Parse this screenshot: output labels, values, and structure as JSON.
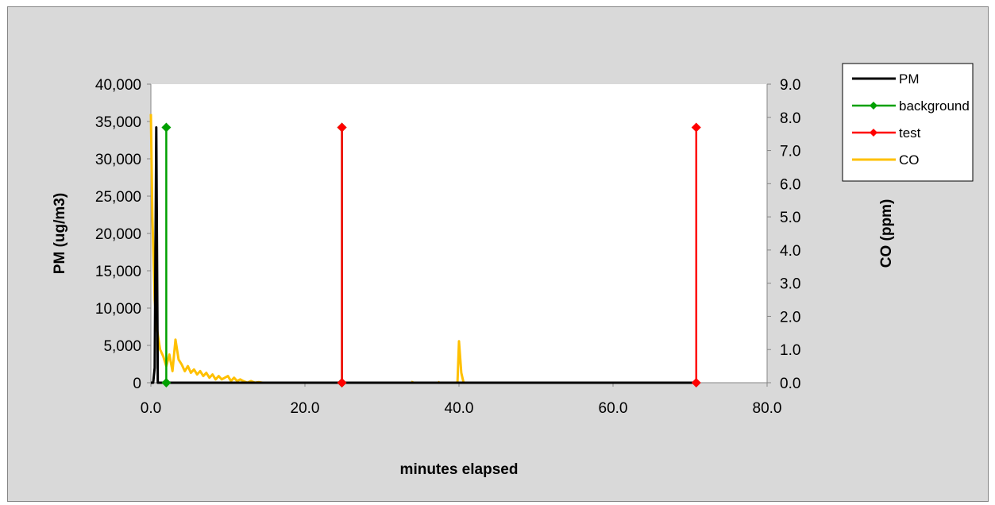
{
  "chart_data": {
    "type": "line",
    "xlabel": "minutes elapsed",
    "ylabel": "PM (ug/m3)",
    "y2label": "CO (ppm)",
    "xlim": [
      0,
      80
    ],
    "ylim": [
      0,
      40000
    ],
    "y2lim": [
      0,
      9
    ],
    "x_ticks": [
      0,
      20,
      40,
      60,
      80
    ],
    "x_tick_labels": [
      "0.0",
      "20.0",
      "40.0",
      "60.0",
      "80.0"
    ],
    "y_ticks": [
      0,
      5000,
      10000,
      15000,
      20000,
      25000,
      30000,
      35000,
      40000
    ],
    "y_tick_labels": [
      "0",
      "5,000",
      "10,000",
      "15,000",
      "20,000",
      "25,000",
      "30,000",
      "35,000",
      "40,000"
    ],
    "y2_ticks": [
      0,
      1,
      2,
      3,
      4,
      5,
      6,
      7,
      8,
      9
    ],
    "y2_tick_labels": [
      "0.0",
      "1.0",
      "2.0",
      "3.0",
      "4.0",
      "5.0",
      "6.0",
      "7.0",
      "8.0",
      "9.0"
    ],
    "grid": false,
    "legend_position": "right",
    "series": [
      {
        "name": "PM",
        "axis": "left",
        "color": "#000000",
        "marker": "none",
        "x": [
          0,
          0.3,
          0.5,
          0.7,
          0.9,
          1.1,
          1.5,
          2,
          5,
          10,
          20,
          30,
          40,
          50,
          60,
          70,
          71
        ],
        "y": [
          0,
          0,
          2000,
          34200,
          0,
          0,
          0,
          0,
          0,
          0,
          0,
          0,
          0,
          0,
          0,
          0,
          0
        ]
      },
      {
        "name": "background",
        "axis": "left",
        "color": "#00a000",
        "marker": "diamond",
        "x": [
          2,
          2,
          null,
          24.8,
          24.8
        ],
        "y": [
          0,
          34200,
          null,
          34200,
          0
        ]
      },
      {
        "name": "test",
        "axis": "left",
        "color": "#ff0000",
        "marker": "diamond",
        "x": [
          24.8,
          24.8,
          null,
          70.8,
          70.8
        ],
        "y": [
          34200,
          0,
          null,
          0,
          34200
        ]
      },
      {
        "name": "CO",
        "axis": "right",
        "color": "#ffc000",
        "marker": "none",
        "x": [
          0,
          0.2,
          0.5,
          0.8,
          1.2,
          1.6,
          2.0,
          2.4,
          2.8,
          3.2,
          3.6,
          4.0,
          4.4,
          4.8,
          5.2,
          5.6,
          6.0,
          6.4,
          6.8,
          7.2,
          7.6,
          8.0,
          8.4,
          8.8,
          9.2,
          9.6,
          10.0,
          10.4,
          10.8,
          11.2,
          11.6,
          12.0,
          12.5,
          13.0,
          13.5,
          14.0,
          14.5,
          15.0,
          null,
          33.9,
          34.0,
          null,
          37.3,
          37.5,
          null,
          39.8,
          40.0,
          40.3,
          40.6
        ],
        "y": [
          8.1,
          5.0,
          2.5,
          1.6,
          1.0,
          0.8,
          0.5,
          0.85,
          0.35,
          1.3,
          0.7,
          0.55,
          0.35,
          0.5,
          0.3,
          0.4,
          0.25,
          0.35,
          0.2,
          0.3,
          0.15,
          0.25,
          0.1,
          0.2,
          0.1,
          0.15,
          0.2,
          0.05,
          0.15,
          0.05,
          0.1,
          0.05,
          0.0,
          0.05,
          0.0,
          0.02,
          0.0,
          0.0,
          null,
          0.0,
          0.05,
          null,
          0.0,
          0.03,
          null,
          0.0,
          1.25,
          0.3,
          0.0
        ]
      }
    ]
  }
}
